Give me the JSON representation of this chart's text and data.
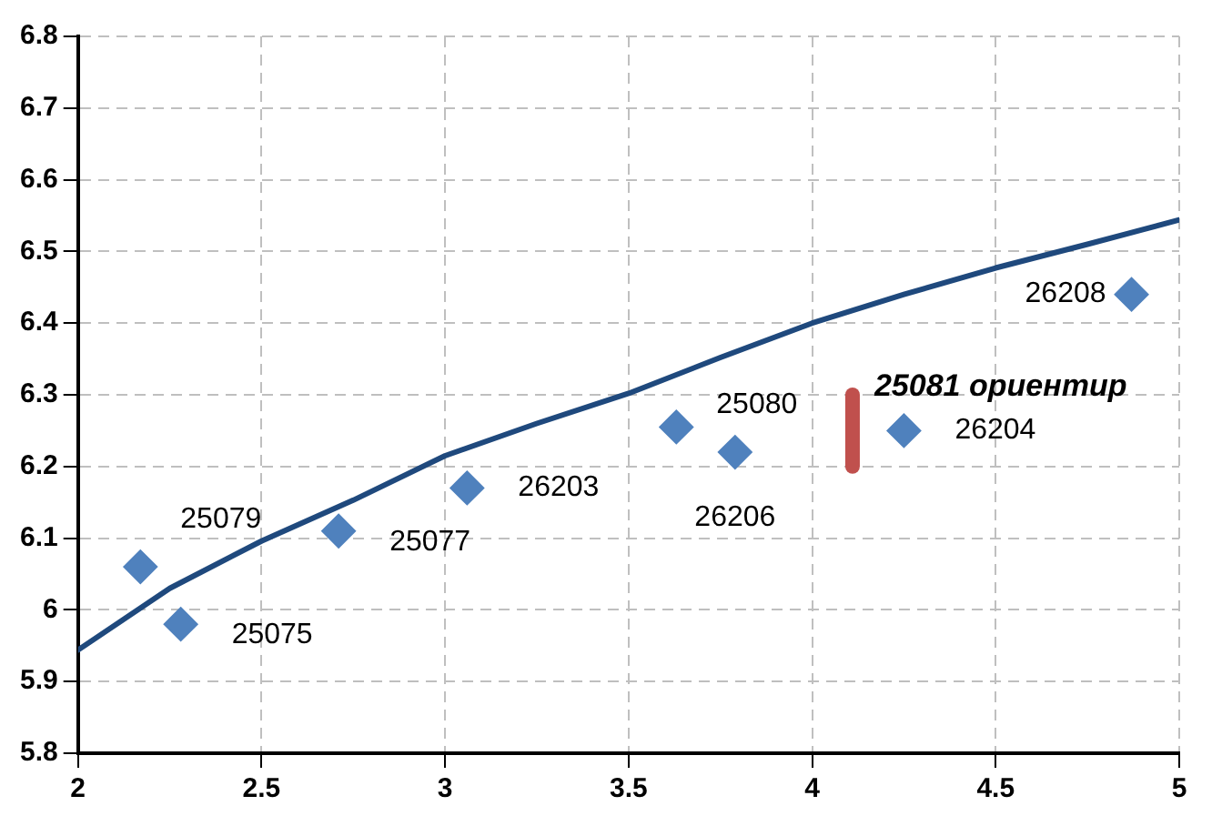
{
  "chart_data": {
    "type": "scatter",
    "grid": true,
    "xlim": [
      2,
      5
    ],
    "xticks": [
      2,
      2.5,
      3,
      3.5,
      4,
      4.5,
      5
    ],
    "ylim": [
      5.8,
      6.8
    ],
    "yticks": [
      5.8,
      5.9,
      6,
      6.1,
      6.2,
      6.3,
      6.4,
      6.5,
      6.6,
      6.7,
      6.8
    ],
    "series": [
      {
        "type": "line",
        "color": "#1f497d",
        "x": [
          2,
          2.25,
          2.5,
          2.75,
          3,
          3.25,
          3.5,
          3.75,
          4,
          4.25,
          4.5,
          4.75,
          5
        ],
        "values": [
          5.944,
          6.03,
          6.096,
          6.153,
          6.215,
          6.26,
          6.302,
          6.352,
          6.4,
          6.44,
          6.477,
          6.51,
          6.544
        ]
      },
      {
        "marker": "diamond",
        "color": "#4f81bd",
        "x": [
          2.17,
          2.28,
          2.71,
          3.06,
          3.63,
          3.79,
          4.25,
          4.87
        ],
        "values": [
          6.06,
          5.98,
          6.11,
          6.17,
          6.255,
          6.22,
          6.25,
          6.44
        ]
      },
      {
        "type": "line",
        "name": "25081 ориентир",
        "color": "#c0504d",
        "x": [
          4.11,
          4.11
        ],
        "values": [
          6.2,
          6.3
        ]
      }
    ],
    "annotations": [
      {
        "text": "25079",
        "x": 2.17,
        "y": 6.06
      },
      {
        "text": "25075",
        "x": 2.28,
        "y": 5.98
      },
      {
        "text": "25077",
        "x": 2.71,
        "y": 6.11
      },
      {
        "text": "26203",
        "x": 3.06,
        "y": 6.17
      },
      {
        "text": "25080",
        "x": 3.63,
        "y": 6.255
      },
      {
        "text": "26206",
        "x": 3.79,
        "y": 6.22
      },
      {
        "text": "26204",
        "x": 4.25,
        "y": 6.25
      },
      {
        "text": "26208",
        "x": 4.87,
        "y": 6.44
      }
    ]
  }
}
